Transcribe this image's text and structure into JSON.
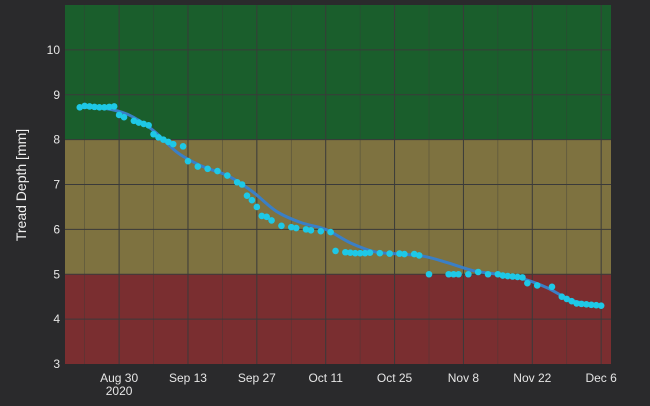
{
  "chart_data": {
    "type": "scatter",
    "title": "",
    "xlabel": "",
    "ylabel": "Tread Depth [mm]",
    "ylim": [
      3,
      11
    ],
    "xlim": [
      "2020-08-19",
      "2020-12-08"
    ],
    "y_ticks": [
      3,
      4,
      5,
      6,
      7,
      8,
      9,
      10
    ],
    "x_ticks": [
      {
        "date": "2020-08-30",
        "label": "Aug 30",
        "sublabel": "2020"
      },
      {
        "date": "2020-09-13",
        "label": "Sep 13",
        "sublabel": ""
      },
      {
        "date": "2020-09-27",
        "label": "Sep 27",
        "sublabel": ""
      },
      {
        "date": "2020-10-11",
        "label": "Oct 11",
        "sublabel": ""
      },
      {
        "date": "2020-10-25",
        "label": "Oct 25",
        "sublabel": ""
      },
      {
        "date": "2020-11-08",
        "label": "Nov 8",
        "sublabel": ""
      },
      {
        "date": "2020-11-22",
        "label": "Nov 22",
        "sublabel": ""
      },
      {
        "date": "2020-12-06",
        "label": "Dec 6",
        "sublabel": ""
      }
    ],
    "grid": true,
    "bands": [
      {
        "from": 8,
        "to": 11,
        "color": "#1a5e2c"
      },
      {
        "from": 5,
        "to": 8,
        "color": "#7e7240"
      },
      {
        "from": 3,
        "to": 5,
        "color": "#7a2e30"
      }
    ],
    "colors": {
      "background": "#2a2a2c",
      "gridline": "#3a3a3a",
      "points": "#1ec8e6",
      "trend": "#3a7fc6",
      "text": "#e6e6e6"
    },
    "series": [
      {
        "kind": "points",
        "x": [
          "2020-08-22",
          "2020-08-23",
          "2020-08-24",
          "2020-08-25",
          "2020-08-26",
          "2020-08-27",
          "2020-08-28",
          "2020-08-29",
          "2020-08-30",
          "2020-08-31",
          "2020-09-02",
          "2020-09-03",
          "2020-09-04",
          "2020-09-05",
          "2020-09-06",
          "2020-09-07",
          "2020-09-08",
          "2020-09-09",
          "2020-09-10",
          "2020-09-12",
          "2020-09-13",
          "2020-09-15",
          "2020-09-17",
          "2020-09-19",
          "2020-09-21",
          "2020-09-23",
          "2020-09-24",
          "2020-09-25",
          "2020-09-26",
          "2020-09-27",
          "2020-09-28",
          "2020-09-29",
          "2020-09-30",
          "2020-10-02",
          "2020-10-04",
          "2020-10-05",
          "2020-10-07",
          "2020-10-08",
          "2020-10-10",
          "2020-10-12",
          "2020-10-13",
          "2020-10-15",
          "2020-10-16",
          "2020-10-17",
          "2020-10-18",
          "2020-10-19",
          "2020-10-20",
          "2020-10-22",
          "2020-10-24",
          "2020-10-26",
          "2020-10-27",
          "2020-10-29",
          "2020-10-30",
          "2020-11-01",
          "2020-11-05",
          "2020-11-06",
          "2020-11-07",
          "2020-11-09",
          "2020-11-11",
          "2020-11-13",
          "2020-11-15",
          "2020-11-16",
          "2020-11-17",
          "2020-11-18",
          "2020-11-19",
          "2020-11-20",
          "2020-11-21",
          "2020-11-23",
          "2020-11-26",
          "2020-11-28",
          "2020-11-29",
          "2020-11-30",
          "2020-12-01",
          "2020-12-02",
          "2020-12-03",
          "2020-12-04",
          "2020-12-05",
          "2020-12-06"
        ],
        "y": [
          8.72,
          8.75,
          8.74,
          8.73,
          8.72,
          8.72,
          8.73,
          8.74,
          8.55,
          8.5,
          8.42,
          8.38,
          8.35,
          8.32,
          8.12,
          8.05,
          8.0,
          7.95,
          7.9,
          7.85,
          7.52,
          7.4,
          7.35,
          7.3,
          7.2,
          7.05,
          7.0,
          6.75,
          6.65,
          6.5,
          6.3,
          6.28,
          6.2,
          6.08,
          6.05,
          6.03,
          6.0,
          5.98,
          5.96,
          5.94,
          5.52,
          5.49,
          5.48,
          5.47,
          5.47,
          5.47,
          5.48,
          5.47,
          5.46,
          5.46,
          5.45,
          5.45,
          5.42,
          5.0,
          5.0,
          5.0,
          5.0,
          5.0,
          5.05,
          5.0,
          5.0,
          4.97,
          4.96,
          4.95,
          4.94,
          4.93,
          4.8,
          4.75,
          4.72,
          4.5,
          4.45,
          4.4,
          4.35,
          4.34,
          4.33,
          4.32,
          4.31,
          4.3
        ]
      },
      {
        "kind": "trend",
        "x": [
          "2020-08-22",
          "2020-08-27",
          "2020-09-01",
          "2020-09-06",
          "2020-09-11",
          "2020-09-16",
          "2020-09-21",
          "2020-09-26",
          "2020-10-01",
          "2020-10-06",
          "2020-10-11",
          "2020-10-16",
          "2020-10-21",
          "2020-10-26",
          "2020-10-31",
          "2020-11-05",
          "2020-11-10",
          "2020-11-15",
          "2020-11-20",
          "2020-11-25",
          "2020-11-30",
          "2020-12-06"
        ],
        "y": [
          8.72,
          8.7,
          8.55,
          8.2,
          7.7,
          7.4,
          7.2,
          6.85,
          6.4,
          6.15,
          6.0,
          5.7,
          5.5,
          5.45,
          5.4,
          5.25,
          5.08,
          5.0,
          4.9,
          4.7,
          4.42,
          4.3
        ]
      }
    ]
  }
}
